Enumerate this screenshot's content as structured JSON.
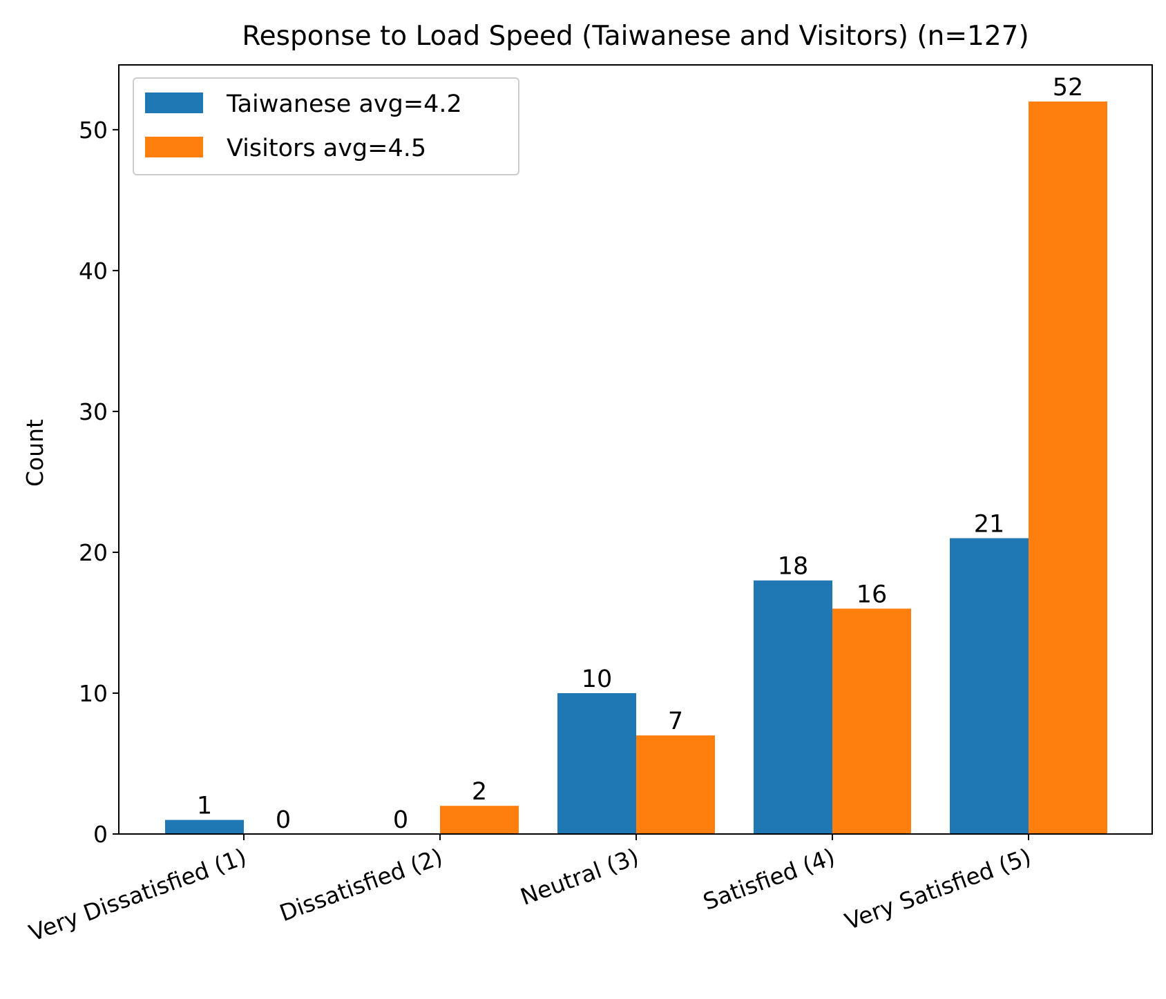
{
  "chart_data": {
    "type": "bar",
    "title": "Response to Load Speed (Taiwanese and Visitors) (n=127)",
    "xlabel": "",
    "ylabel": "Count",
    "categories": [
      "Very Dissatisfied (1)",
      "Dissatisfied (2)",
      "Neutral (3)",
      "Satisfied (4)",
      "Very Satisfied (5)"
    ],
    "series": [
      {
        "name": "Taiwanese avg=4.2",
        "color": "#1f77b4",
        "values": [
          1,
          0,
          10,
          18,
          21
        ]
      },
      {
        "name": "Visitors avg=4.5",
        "color": "#ff7f0e",
        "values": [
          0,
          2,
          7,
          16,
          52
        ]
      }
    ],
    "ylim": [
      0,
      54.6
    ],
    "yticks": [
      0,
      10,
      20,
      30,
      40,
      50
    ],
    "grid": false,
    "legend_position": "top-left",
    "data_labels": true
  }
}
